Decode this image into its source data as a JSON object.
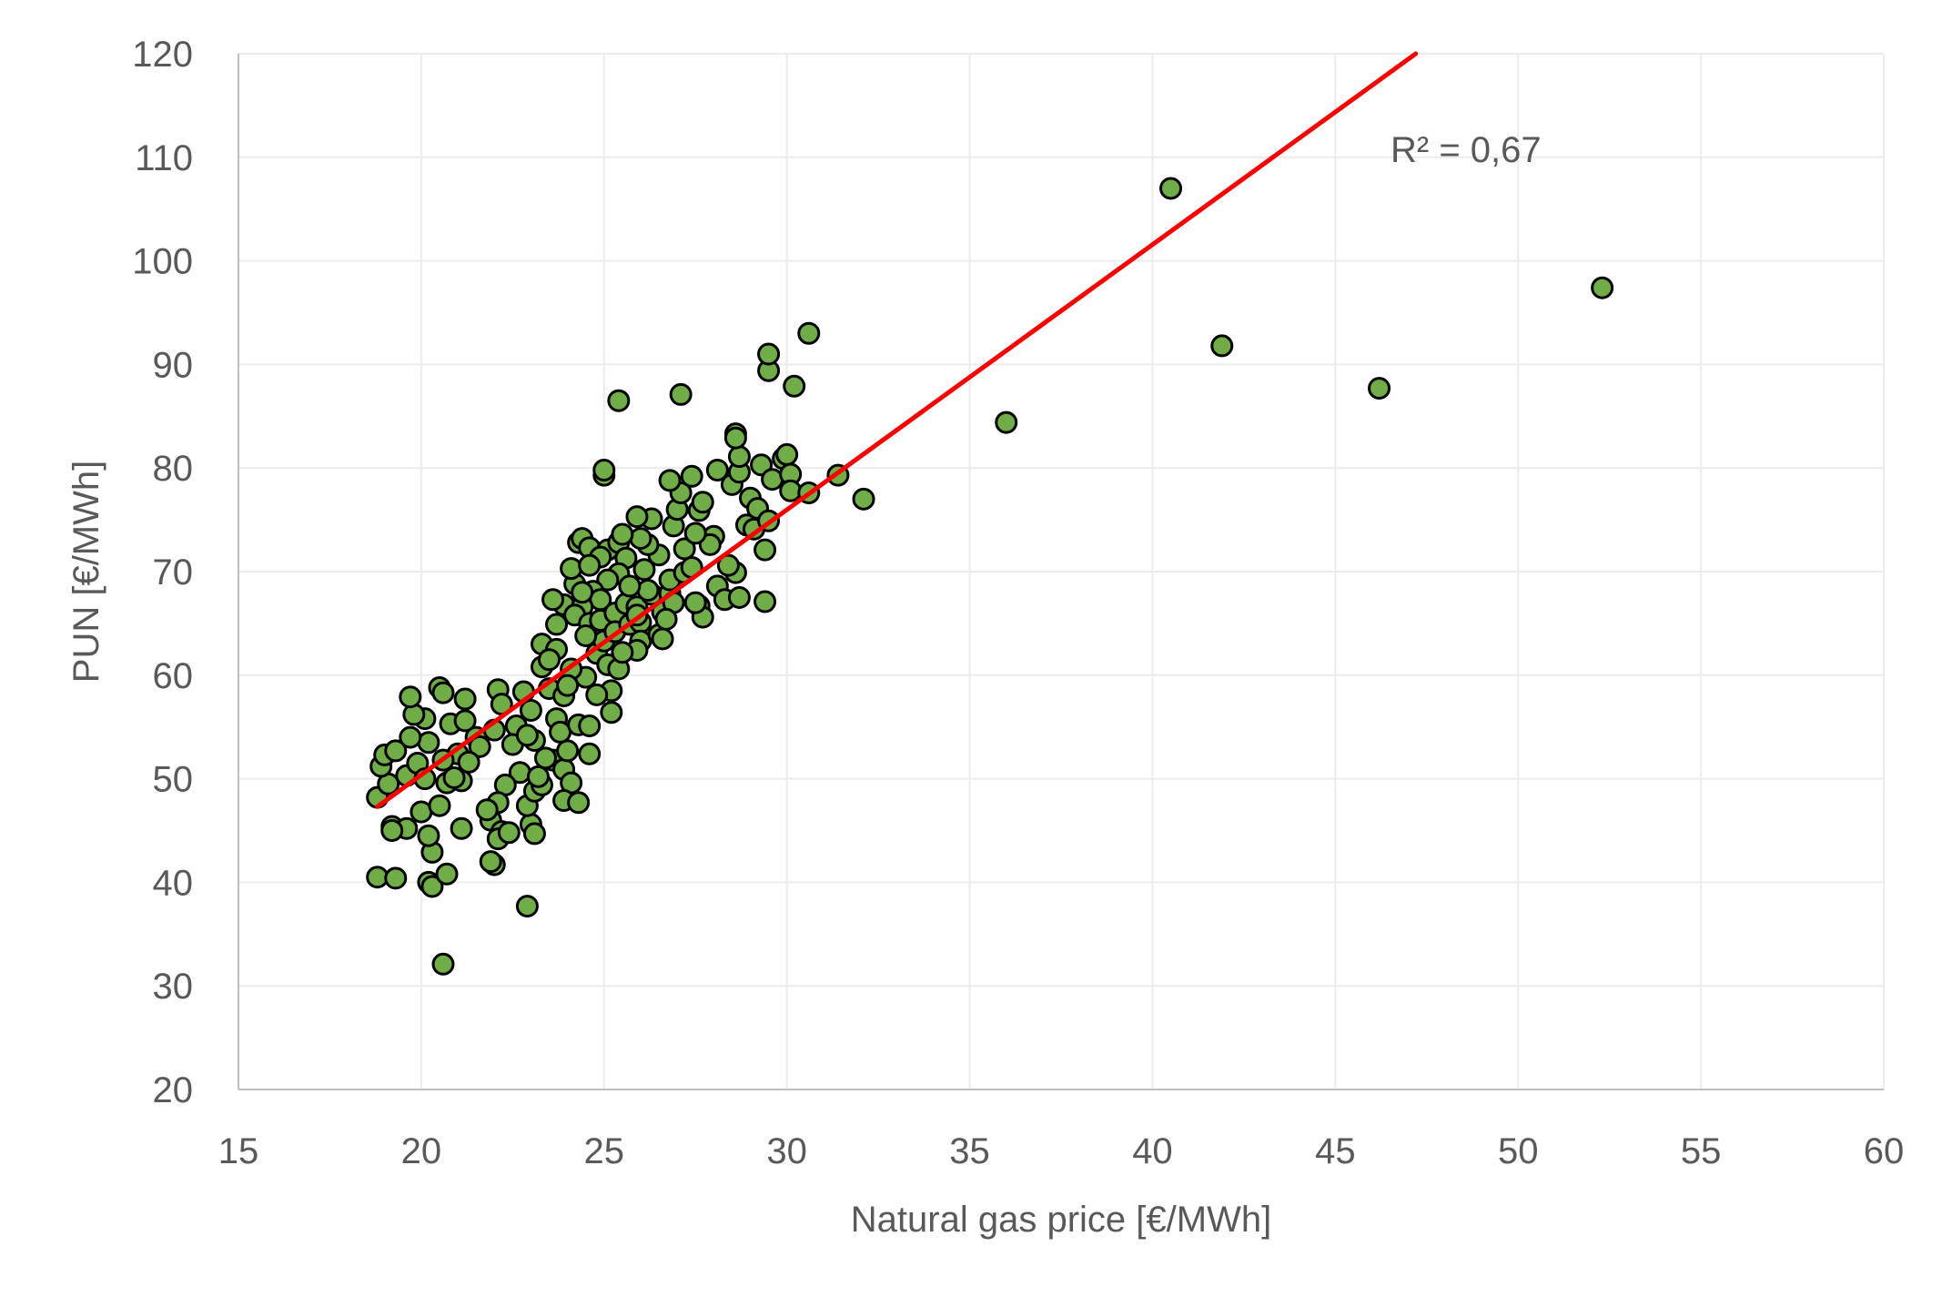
{
  "chart_data": {
    "type": "scatter",
    "title": "",
    "xlabel": "Natural gas price [€/MWh]",
    "ylabel": "PUN [€/MWh]",
    "xlim": [
      15,
      60
    ],
    "ylim": [
      20,
      120
    ],
    "xticks": [
      15,
      20,
      25,
      30,
      35,
      40,
      45,
      50,
      55,
      60
    ],
    "yticks": [
      20,
      30,
      40,
      50,
      60,
      70,
      80,
      90,
      100,
      110,
      120
    ],
    "grid": true,
    "legend": "none",
    "colors": {
      "marker_fill": "#70ad47",
      "marker_edge": "#000000",
      "trendline": "#ff0000",
      "grid": "#ececec",
      "axis": "#bfbfbf",
      "text": "#595959"
    },
    "annotation": "R² = 0,67",
    "trendline": {
      "type": "linear",
      "x": [
        18.8,
        47.2
      ],
      "y": [
        47.3,
        120
      ]
    },
    "series": [
      {
        "points": [
          [
            18.8,
            40.5
          ],
          [
            19.3,
            40.4
          ],
          [
            20.2,
            40.0
          ],
          [
            20.3,
            39.6
          ],
          [
            20.7,
            40.8
          ],
          [
            22.0,
            41.7
          ],
          [
            22.9,
            37.7
          ],
          [
            20.6,
            32.1
          ],
          [
            20.3,
            42.9
          ],
          [
            20.2,
            44.5
          ],
          [
            21.1,
            45.2
          ],
          [
            19.2,
            45.4
          ],
          [
            19.6,
            45.2
          ],
          [
            20.0,
            46.8
          ],
          [
            19.2,
            45.0
          ],
          [
            21.9,
            42.0
          ],
          [
            18.8,
            48.2
          ],
          [
            19.1,
            49.5
          ],
          [
            18.9,
            51.2
          ],
          [
            19.0,
            52.3
          ],
          [
            19.3,
            52.7
          ],
          [
            19.6,
            50.3
          ],
          [
            19.9,
            51.5
          ],
          [
            20.2,
            53.5
          ],
          [
            19.7,
            54.0
          ],
          [
            20.1,
            55.8
          ],
          [
            19.8,
            56.2
          ],
          [
            19.7,
            57.9
          ],
          [
            20.5,
            58.8
          ],
          [
            20.6,
            58.3
          ],
          [
            21.2,
            57.7
          ],
          [
            20.8,
            55.3
          ],
          [
            21.2,
            55.6
          ],
          [
            21.5,
            54.0
          ],
          [
            21.0,
            52.4
          ],
          [
            20.6,
            51.8
          ],
          [
            20.1,
            50.0
          ],
          [
            20.7,
            49.6
          ],
          [
            20.5,
            47.4
          ],
          [
            21.1,
            49.8
          ],
          [
            21.6,
            53.1
          ],
          [
            22.1,
            58.6
          ],
          [
            22.2,
            57.2
          ],
          [
            22.6,
            55.1
          ],
          [
            22.0,
            54.7
          ],
          [
            22.5,
            53.3
          ],
          [
            22.7,
            50.6
          ],
          [
            22.3,
            49.4
          ],
          [
            22.1,
            47.7
          ],
          [
            21.9,
            46.0
          ],
          [
            22.2,
            44.9
          ],
          [
            22.1,
            44.2
          ],
          [
            23.0,
            45.6
          ],
          [
            23.1,
            44.7
          ],
          [
            22.9,
            47.4
          ],
          [
            23.1,
            48.8
          ],
          [
            23.3,
            49.4
          ],
          [
            23.6,
            51.8
          ],
          [
            23.9,
            50.9
          ],
          [
            24.1,
            49.6
          ],
          [
            23.9,
            47.9
          ],
          [
            24.3,
            47.7
          ],
          [
            24.6,
            52.4
          ],
          [
            24.0,
            52.7
          ],
          [
            23.4,
            52.0
          ],
          [
            23.1,
            53.7
          ],
          [
            22.9,
            54.2
          ],
          [
            23.0,
            56.6
          ],
          [
            22.8,
            58.4
          ],
          [
            23.5,
            58.7
          ],
          [
            23.9,
            58.0
          ],
          [
            23.7,
            55.8
          ],
          [
            23.8,
            54.5
          ],
          [
            24.3,
            55.2
          ],
          [
            24.6,
            55.1
          ],
          [
            25.2,
            56.4
          ],
          [
            25.2,
            58.5
          ],
          [
            24.8,
            58.1
          ],
          [
            24.5,
            59.8
          ],
          [
            24.1,
            60.6
          ],
          [
            23.3,
            60.8
          ],
          [
            23.3,
            63.0
          ],
          [
            23.7,
            62.5
          ],
          [
            23.7,
            64.9
          ],
          [
            23.9,
            66.8
          ],
          [
            23.6,
            67.3
          ],
          [
            24.2,
            68.8
          ],
          [
            24.1,
            70.3
          ],
          [
            24.3,
            72.8
          ],
          [
            24.4,
            73.2
          ],
          [
            24.6,
            72.3
          ],
          [
            25.1,
            72.1
          ],
          [
            25.4,
            72.8
          ],
          [
            25.6,
            71.3
          ],
          [
            25.4,
            69.8
          ],
          [
            25.1,
            69.2
          ],
          [
            24.7,
            68.1
          ],
          [
            24.9,
            67.3
          ],
          [
            24.4,
            66.6
          ],
          [
            24.2,
            65.8
          ],
          [
            24.6,
            65.0
          ],
          [
            24.9,
            65.3
          ],
          [
            25.3,
            66.0
          ],
          [
            25.6,
            66.9
          ],
          [
            25.9,
            66.6
          ],
          [
            26.3,
            67.8
          ],
          [
            26.2,
            68.2
          ],
          [
            26.8,
            67.9
          ],
          [
            26.8,
            69.2
          ],
          [
            26.5,
            71.6
          ],
          [
            26.2,
            72.6
          ],
          [
            26.3,
            75.1
          ],
          [
            25.9,
            75.3
          ],
          [
            26.0,
            73.2
          ],
          [
            25.5,
            73.6
          ],
          [
            24.9,
            71.4
          ],
          [
            24.6,
            70.6
          ],
          [
            24.4,
            68.0
          ],
          [
            24.8,
            62.1
          ],
          [
            25.0,
            63.3
          ],
          [
            25.1,
            61.0
          ],
          [
            25.4,
            60.6
          ],
          [
            25.3,
            64.2
          ],
          [
            25.7,
            64.9
          ],
          [
            26.0,
            65.1
          ],
          [
            26.0,
            63.3
          ],
          [
            25.9,
            62.4
          ],
          [
            26.5,
            63.9
          ],
          [
            26.6,
            63.5
          ],
          [
            26.6,
            66.1
          ],
          [
            26.9,
            67.0
          ],
          [
            27.2,
            69.9
          ],
          [
            27.4,
            70.4
          ],
          [
            27.6,
            66.7
          ],
          [
            27.7,
            65.6
          ],
          [
            27.5,
            67.0
          ],
          [
            27.2,
            72.2
          ],
          [
            26.9,
            74.4
          ],
          [
            27.0,
            76.0
          ],
          [
            27.1,
            77.6
          ],
          [
            26.8,
            78.8
          ],
          [
            27.4,
            79.2
          ],
          [
            27.6,
            75.9
          ],
          [
            27.7,
            76.7
          ],
          [
            28.0,
            73.4
          ],
          [
            27.9,
            72.6
          ],
          [
            28.1,
            68.6
          ],
          [
            28.3,
            67.3
          ],
          [
            28.7,
            67.5
          ],
          [
            28.6,
            69.9
          ],
          [
            28.9,
            74.5
          ],
          [
            29.1,
            74.1
          ],
          [
            28.5,
            78.4
          ],
          [
            28.1,
            79.8
          ],
          [
            28.7,
            79.6
          ],
          [
            28.7,
            81.1
          ],
          [
            28.6,
            83.3
          ],
          [
            28.6,
            82.9
          ],
          [
            29.0,
            77.1
          ],
          [
            29.2,
            76.1
          ],
          [
            29.3,
            80.3
          ],
          [
            29.6,
            78.9
          ],
          [
            29.5,
            74.9
          ],
          [
            29.4,
            72.1
          ],
          [
            29.4,
            67.1
          ],
          [
            29.9,
            80.9
          ],
          [
            30.0,
            81.3
          ],
          [
            30.1,
            79.4
          ],
          [
            30.1,
            77.8
          ],
          [
            30.6,
            77.6
          ],
          [
            31.4,
            79.3
          ],
          [
            32.1,
            77.0
          ],
          [
            29.5,
            89.4
          ],
          [
            29.5,
            91.0
          ],
          [
            30.6,
            93.0
          ],
          [
            30.2,
            87.9
          ],
          [
            25.0,
            79.3
          ],
          [
            25.0,
            79.8
          ],
          [
            25.4,
            86.5
          ],
          [
            27.1,
            87.1
          ],
          [
            36.0,
            84.4
          ],
          [
            40.5,
            107.0
          ],
          [
            41.9,
            91.8
          ],
          [
            46.2,
            87.7
          ],
          [
            52.3,
            97.4
          ],
          [
            21.3,
            51.6
          ],
          [
            20.9,
            50.1
          ],
          [
            21.8,
            47.0
          ],
          [
            22.4,
            44.8
          ],
          [
            23.2,
            50.2
          ],
          [
            24.0,
            59.0
          ],
          [
            23.5,
            61.5
          ],
          [
            25.9,
            65.8
          ],
          [
            26.7,
            65.4
          ],
          [
            25.5,
            62.2
          ],
          [
            24.5,
            63.8
          ],
          [
            26.1,
            70.2
          ],
          [
            27.5,
            73.7
          ],
          [
            28.4,
            70.6
          ],
          [
            25.7,
            68.6
          ]
        ]
      }
    ]
  }
}
